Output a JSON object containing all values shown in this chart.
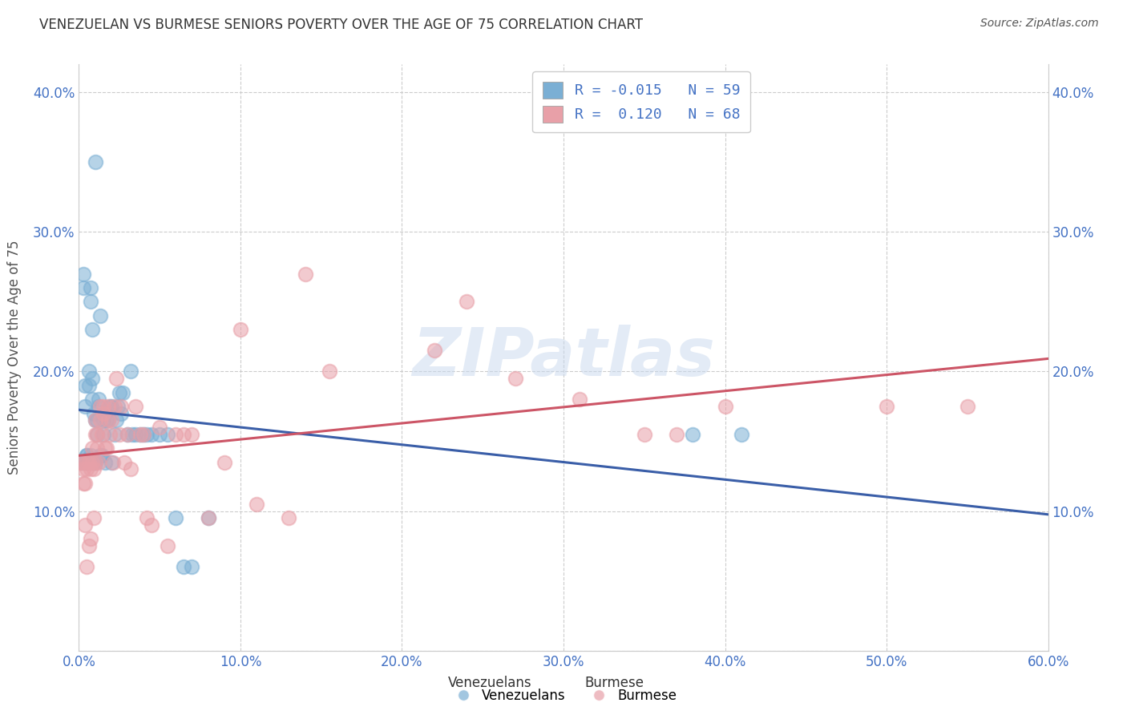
{
  "title": "VENEZUELAN VS BURMESE SENIORS POVERTY OVER THE AGE OF 75 CORRELATION CHART",
  "source": "Source: ZipAtlas.com",
  "ylabel": "Seniors Poverty Over the Age of 75",
  "xlim": [
    0.0,
    0.6
  ],
  "ylim": [
    0.0,
    0.42
  ],
  "xticks": [
    0.0,
    0.1,
    0.2,
    0.3,
    0.4,
    0.5,
    0.6
  ],
  "xtick_labels": [
    "0.0%",
    "10.0%",
    "20.0%",
    "30.0%",
    "40.0%",
    "50.0%",
    "60.0%"
  ],
  "yticks": [
    0.0,
    0.1,
    0.2,
    0.3,
    0.4
  ],
  "ytick_labels": [
    "",
    "10.0%",
    "20.0%",
    "30.0%",
    "40.0%"
  ],
  "venezuelan_R": -0.015,
  "venezuelan_N": 59,
  "burmese_R": 0.12,
  "burmese_N": 68,
  "blue_color": "#7bafd4",
  "pink_color": "#e8a0a8",
  "trend_blue": "#3a5ea8",
  "trend_pink": "#cc5566",
  "venezuelan_x": [
    0.002,
    0.003,
    0.003,
    0.004,
    0.004,
    0.005,
    0.005,
    0.005,
    0.006,
    0.006,
    0.007,
    0.007,
    0.007,
    0.008,
    0.008,
    0.008,
    0.009,
    0.009,
    0.01,
    0.01,
    0.01,
    0.011,
    0.011,
    0.012,
    0.012,
    0.013,
    0.013,
    0.014,
    0.015,
    0.015,
    0.016,
    0.016,
    0.017,
    0.018,
    0.019,
    0.02,
    0.02,
    0.022,
    0.023,
    0.024,
    0.025,
    0.026,
    0.027,
    0.03,
    0.032,
    0.033,
    0.035,
    0.038,
    0.04,
    0.042,
    0.045,
    0.05,
    0.055,
    0.06,
    0.065,
    0.07,
    0.08,
    0.38,
    0.41
  ],
  "venezuelan_y": [
    0.135,
    0.27,
    0.26,
    0.19,
    0.175,
    0.135,
    0.14,
    0.14,
    0.2,
    0.19,
    0.25,
    0.26,
    0.14,
    0.18,
    0.195,
    0.23,
    0.17,
    0.135,
    0.135,
    0.165,
    0.35,
    0.155,
    0.165,
    0.18,
    0.175,
    0.24,
    0.14,
    0.14,
    0.165,
    0.155,
    0.17,
    0.135,
    0.165,
    0.165,
    0.175,
    0.175,
    0.135,
    0.155,
    0.165,
    0.175,
    0.185,
    0.17,
    0.185,
    0.155,
    0.2,
    0.155,
    0.155,
    0.155,
    0.155,
    0.155,
    0.155,
    0.155,
    0.155,
    0.095,
    0.06,
    0.06,
    0.095,
    0.155,
    0.155
  ],
  "burmese_x": [
    0.001,
    0.002,
    0.003,
    0.003,
    0.004,
    0.004,
    0.005,
    0.005,
    0.005,
    0.006,
    0.006,
    0.007,
    0.007,
    0.008,
    0.008,
    0.009,
    0.009,
    0.01,
    0.01,
    0.01,
    0.011,
    0.011,
    0.012,
    0.013,
    0.013,
    0.014,
    0.015,
    0.015,
    0.016,
    0.017,
    0.018,
    0.018,
    0.019,
    0.02,
    0.021,
    0.022,
    0.023,
    0.025,
    0.026,
    0.028,
    0.03,
    0.032,
    0.035,
    0.038,
    0.04,
    0.042,
    0.045,
    0.05,
    0.055,
    0.06,
    0.065,
    0.07,
    0.08,
    0.09,
    0.1,
    0.11,
    0.13,
    0.14,
    0.155,
    0.22,
    0.24,
    0.27,
    0.31,
    0.35,
    0.37,
    0.4,
    0.5,
    0.55
  ],
  "burmese_y": [
    0.135,
    0.135,
    0.12,
    0.13,
    0.12,
    0.09,
    0.135,
    0.13,
    0.06,
    0.135,
    0.075,
    0.13,
    0.08,
    0.135,
    0.145,
    0.095,
    0.13,
    0.155,
    0.165,
    0.135,
    0.145,
    0.155,
    0.135,
    0.165,
    0.175,
    0.155,
    0.17,
    0.175,
    0.145,
    0.145,
    0.175,
    0.165,
    0.155,
    0.165,
    0.135,
    0.175,
    0.195,
    0.155,
    0.175,
    0.135,
    0.155,
    0.13,
    0.175,
    0.155,
    0.155,
    0.095,
    0.09,
    0.16,
    0.075,
    0.155,
    0.155,
    0.155,
    0.095,
    0.135,
    0.23,
    0.105,
    0.095,
    0.27,
    0.2,
    0.215,
    0.25,
    0.195,
    0.18,
    0.155,
    0.155,
    0.175,
    0.175,
    0.175
  ],
  "watermark": "ZIPatlas",
  "background_color": "#ffffff",
  "grid_color": "#cccccc"
}
